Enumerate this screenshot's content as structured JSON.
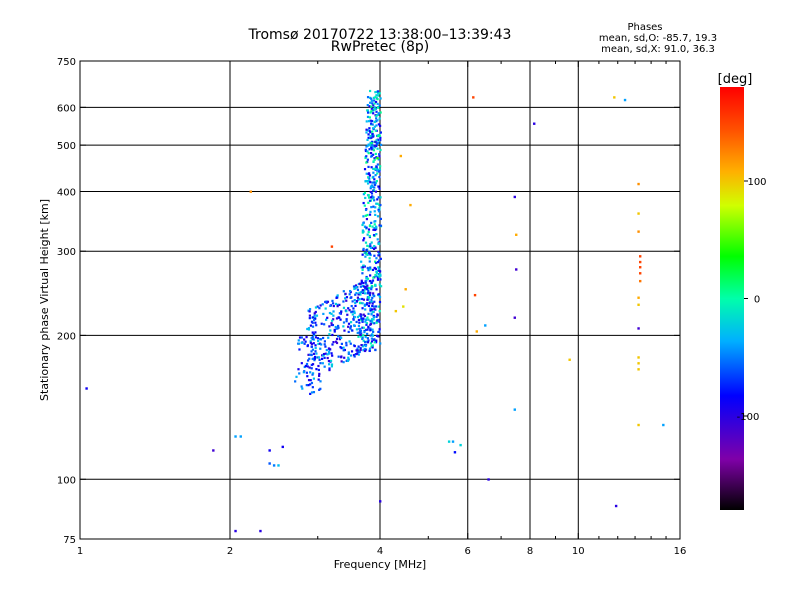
{
  "chart_data": {
    "type": "scatter",
    "title": "Tromsø 20170722 13:38:00–13:39:43",
    "subtitle": "RwPretec (8p)",
    "xlabel": "Frequency [MHz]",
    "ylabel": "Stationary phase Virtual Height [km]",
    "x_scale": "log",
    "y_scale": "log",
    "xlim": [
      1,
      16
    ],
    "ylim": [
      75,
      750
    ],
    "x_ticks": [
      1,
      2,
      4,
      6,
      8,
      10,
      16
    ],
    "x_tick_labels": [
      "1",
      "2",
      "4",
      "6",
      "8",
      "10",
      "16"
    ],
    "y_ticks": [
      75,
      100,
      200,
      300,
      400,
      500,
      600,
      750
    ],
    "y_tick_labels": [
      "75",
      "100",
      "200",
      "300",
      "400",
      "500",
      "600",
      "750"
    ],
    "x_gridlines": [
      2,
      4,
      6,
      8,
      10
    ],
    "y_gridlines": [
      100,
      200,
      300,
      400,
      500,
      600
    ],
    "phase_stats": {
      "header": "Phases",
      "line_o": "mean, sd,O: -85.7, 19.3",
      "line_x": "mean, sd,X:  91.0, 36.3"
    },
    "colorbar": {
      "label": "[deg]",
      "min": -180,
      "max": 180,
      "ticks": [
        100,
        0,
        -100
      ],
      "tick_labels": [
        "100",
        "0",
        "-100"
      ],
      "colormap": "rainbow (black-purple-blue-cyan-green-yellow-red)"
    },
    "points": [
      [
        1.03,
        155,
        -90
      ],
      [
        1.85,
        115,
        -110
      ],
      [
        2.05,
        123,
        -40
      ],
      [
        2.1,
        123,
        -40
      ],
      [
        2.05,
        78,
        -100
      ],
      [
        2.3,
        78,
        -100
      ],
      [
        2.4,
        115,
        -90
      ],
      [
        2.55,
        117,
        -90
      ],
      [
        2.4,
        108,
        -60
      ],
      [
        2.45,
        107,
        -50
      ],
      [
        2.5,
        107,
        -30
      ],
      [
        2.2,
        400,
        120
      ],
      [
        3.2,
        307,
        150
      ],
      [
        4.4,
        475,
        110
      ],
      [
        4.6,
        375,
        110
      ],
      [
        4.5,
        250,
        110
      ],
      [
        4.45,
        230,
        90
      ],
      [
        4.3,
        225,
        100
      ],
      [
        4.0,
        90,
        -100
      ],
      [
        5.5,
        120,
        -20
      ],
      [
        5.6,
        120,
        -40
      ],
      [
        5.8,
        118,
        -20
      ],
      [
        5.65,
        114,
        -80
      ],
      [
        6.15,
        630,
        150
      ],
      [
        6.2,
        243,
        150
      ],
      [
        6.25,
        204,
        110
      ],
      [
        6.5,
        210,
        -40
      ],
      [
        6.6,
        100,
        -100
      ],
      [
        7.45,
        390,
        -100
      ],
      [
        7.5,
        325,
        110
      ],
      [
        7.5,
        275,
        -110
      ],
      [
        7.45,
        218,
        -110
      ],
      [
        7.45,
        140,
        -40
      ],
      [
        8.15,
        555,
        -100
      ],
      [
        9.6,
        178,
        100
      ],
      [
        11.8,
        630,
        100
      ],
      [
        12.4,
        622,
        -40
      ],
      [
        11.9,
        88,
        -100
      ],
      [
        13.2,
        415,
        120
      ],
      [
        13.2,
        360,
        100
      ],
      [
        13.2,
        330,
        120
      ],
      [
        13.3,
        293,
        150
      ],
      [
        13.3,
        285,
        150
      ],
      [
        13.3,
        278,
        150
      ],
      [
        13.3,
        270,
        150
      ],
      [
        13.3,
        260,
        130
      ],
      [
        13.2,
        240,
        110
      ],
      [
        13.2,
        232,
        100
      ],
      [
        13.2,
        207,
        -110
      ],
      [
        13.2,
        180,
        100
      ],
      [
        13.2,
        175,
        100
      ],
      [
        13.2,
        170,
        100
      ],
      [
        13.2,
        130,
        100
      ],
      [
        14.8,
        130,
        -40
      ],
      [
        3.85,
        620,
        -40
      ],
      [
        3.9,
        560,
        -20
      ],
      [
        3.95,
        470,
        40
      ]
    ],
    "clusters": [
      {
        "x": [
          3.6,
          4.02
        ],
        "y": [
          185,
          650
        ],
        "phase": [
          -100,
          10
        ],
        "count": 520
      },
      {
        "x": [
          2.85,
          3.9
        ],
        "y": [
          175,
          260
        ],
        "phase": [
          -110,
          -20
        ],
        "count": 360
      },
      {
        "x": [
          2.7,
          3.05
        ],
        "y": [
          150,
          200
        ],
        "phase": [
          -100,
          -30
        ],
        "count": 60
      }
    ]
  }
}
